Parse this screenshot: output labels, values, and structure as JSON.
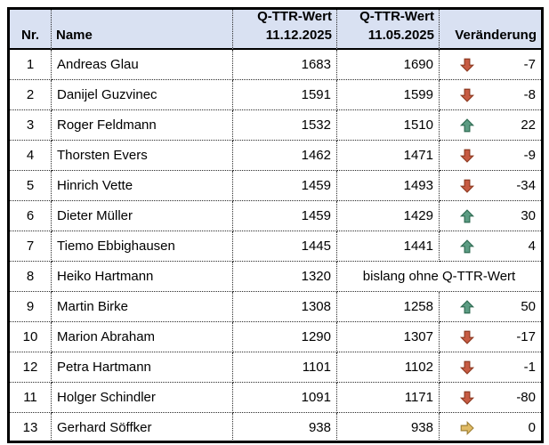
{
  "page": {
    "background": "#ffffff"
  },
  "table": {
    "headers": {
      "nr": "Nr.",
      "name": "Name",
      "qttr_dec_line1": "Q-TTR-Wert",
      "qttr_dec_line2": "11.12.2025",
      "qttr_may_line1": "Q-TTR-Wert",
      "qttr_may_line2": "11.05.2025",
      "change": "Veränderung"
    },
    "rows": [
      {
        "nr": "1",
        "name": "Andreas Glau",
        "q_dec": "1683",
        "q_may": "1690",
        "dir": "down",
        "change": "-7"
      },
      {
        "nr": "2",
        "name": "Danijel Guzvinec",
        "q_dec": "1591",
        "q_may": "1599",
        "dir": "down",
        "change": "-8"
      },
      {
        "nr": "3",
        "name": "Roger Feldmann",
        "q_dec": "1532",
        "q_may": "1510",
        "dir": "up",
        "change": "22"
      },
      {
        "nr": "4",
        "name": "Thorsten Evers",
        "q_dec": "1462",
        "q_may": "1471",
        "dir": "down",
        "change": "-9"
      },
      {
        "nr": "5",
        "name": "Hinrich Vette",
        "q_dec": "1459",
        "q_may": "1493",
        "dir": "down",
        "change": "-34"
      },
      {
        "nr": "6",
        "name": "Dieter Müller",
        "q_dec": "1459",
        "q_may": "1429",
        "dir": "up",
        "change": "30"
      },
      {
        "nr": "7",
        "name": "Tiemo Ebbighausen",
        "q_dec": "1445",
        "q_may": "1441",
        "dir": "up",
        "change": "4"
      },
      {
        "nr": "8",
        "name": "Heiko Hartmann",
        "q_dec": "1320",
        "merged": "bislang ohne Q-TTR-Wert"
      },
      {
        "nr": "9",
        "name": "Martin Birke",
        "q_dec": "1308",
        "q_may": "1258",
        "dir": "up",
        "change": "50"
      },
      {
        "nr": "10",
        "name": "Marion Abraham",
        "q_dec": "1290",
        "q_may": "1307",
        "dir": "down",
        "change": "-17"
      },
      {
        "nr": "12",
        "name": "Petra Hartmann",
        "q_dec": "1101",
        "q_may": "1102",
        "dir": "down",
        "change": "-1"
      },
      {
        "nr": "11",
        "name": "Holger Schindler",
        "q_dec": "1091",
        "q_may": "1171",
        "dir": "down",
        "change": "-80"
      },
      {
        "nr": "13",
        "name": "Gerhard Söffker",
        "q_dec": "938",
        "q_may": "938",
        "dir": "right",
        "change": "0"
      }
    ],
    "colors": {
      "header_bg": "#D9E1F2",
      "outer_border": "#000000",
      "grid_dots": "#2b2b2b",
      "arrows": {
        "up": {
          "fill": "#5C9C83",
          "stroke": "#2F6B52"
        },
        "down": {
          "fill": "#C75B43",
          "stroke": "#8E3B22"
        },
        "right": {
          "fill": "#E0BA64",
          "stroke": "#A08136"
        }
      }
    }
  }
}
